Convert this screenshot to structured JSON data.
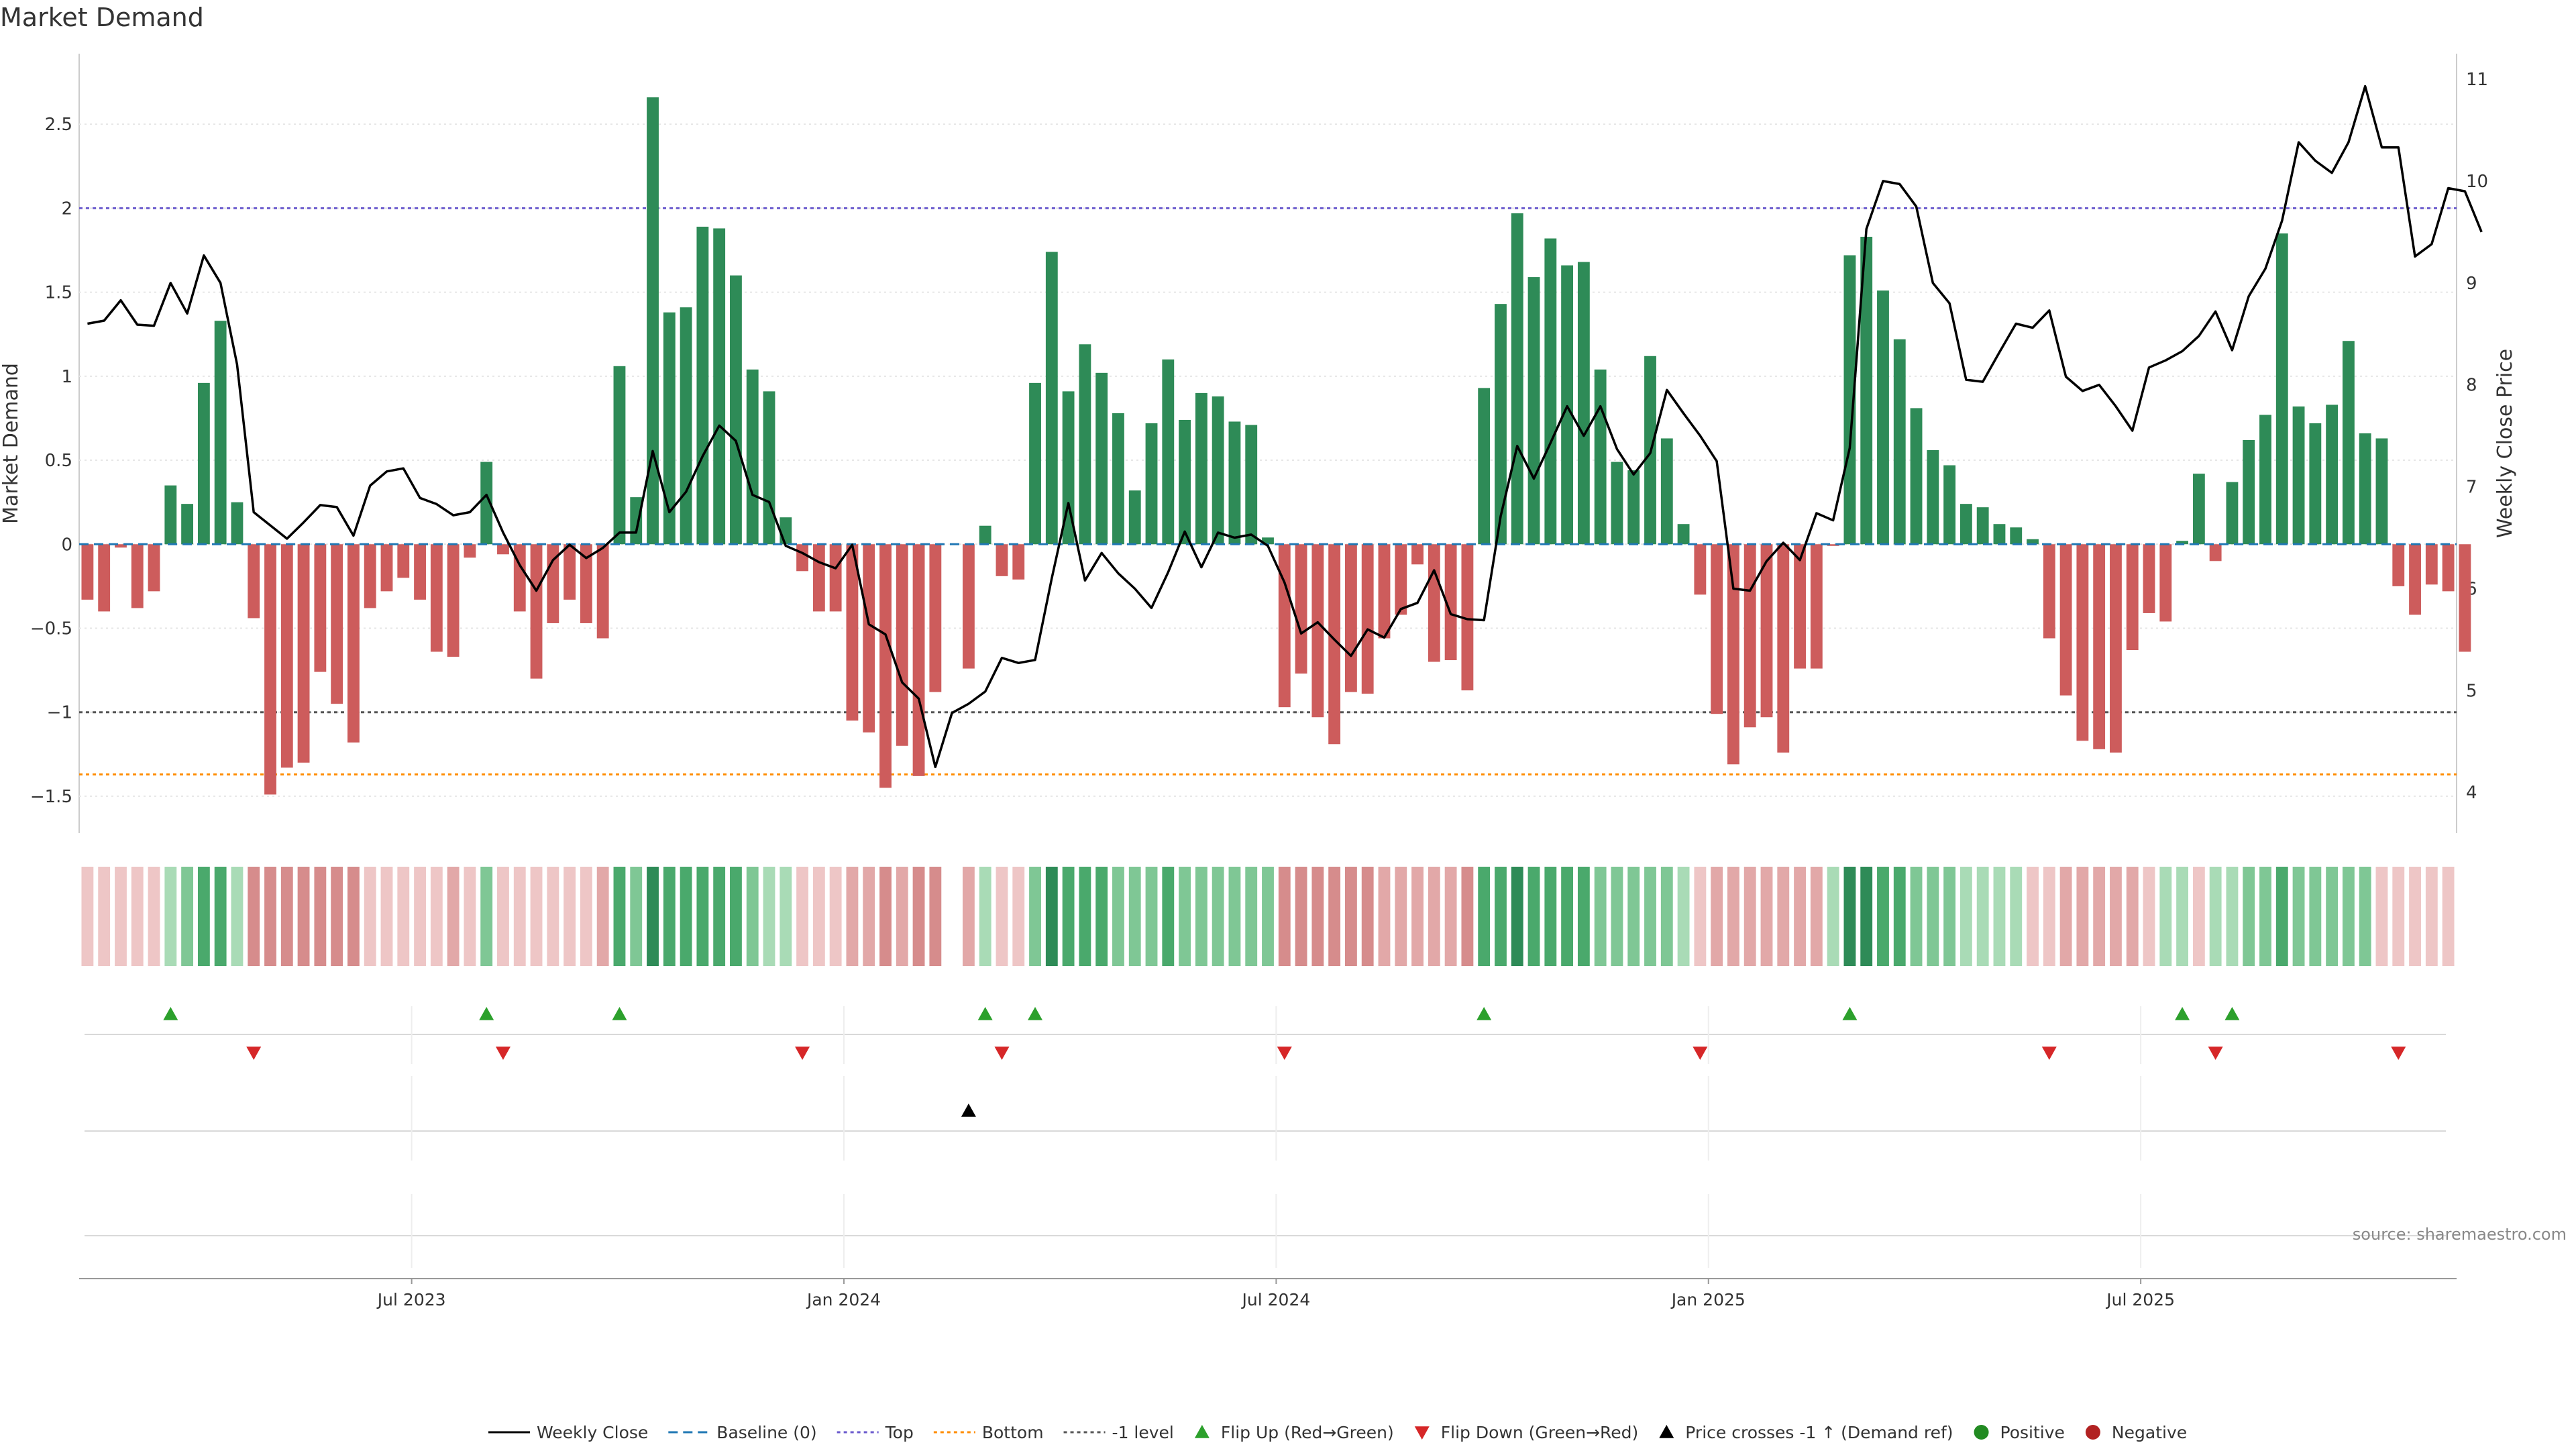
{
  "chart_data": {
    "type": "bar",
    "title": "Market Demand",
    "ylabel": "Market Demand",
    "y2label": "Weekly Close Price",
    "ylim": [
      -1.72,
      2.92
    ],
    "y2lim": [
      3.6,
      11.25
    ],
    "yticks": [
      -1.5,
      -1,
      -0.5,
      0,
      0.5,
      1,
      1.5,
      2,
      2.5
    ],
    "yticklabels": [
      "−1.5",
      "−1",
      "−0.5",
      "0",
      "0.5",
      "1",
      "1.5",
      "2",
      "2.5"
    ],
    "y2ticks": [
      4,
      5,
      6,
      7,
      8,
      9,
      10,
      11
    ],
    "y2ticklabels": [
      "4",
      "5",
      "6",
      "7",
      "8",
      "9",
      "10",
      "11"
    ],
    "xlim": [
      0,
      143
    ],
    "xticks": [
      {
        "label": "Jul 2023",
        "week": 20
      },
      {
        "label": "Jan 2024",
        "week": 46
      },
      {
        "label": "Jul 2024",
        "week": 72
      },
      {
        "label": "Jan 2025",
        "week": 98
      },
      {
        "label": "Jul 2025",
        "week": 124
      }
    ],
    "reference_lines": {
      "baseline": 0,
      "top": 2.0,
      "bottom": -1.37,
      "minus_one": -1.0
    },
    "demand": [
      -0.33,
      -0.4,
      -0.02,
      -0.38,
      -0.28,
      0.35,
      0.24,
      0.96,
      1.33,
      0.25,
      -0.44,
      -1.49,
      -1.33,
      -1.3,
      -0.76,
      -0.95,
      -1.18,
      -0.38,
      -0.28,
      -0.2,
      -0.33,
      -0.64,
      -0.67,
      -0.08,
      0.49,
      -0.06,
      -0.4,
      -0.8,
      -0.47,
      -0.33,
      -0.47,
      -0.56,
      1.06,
      0.28,
      2.66,
      1.38,
      1.41,
      1.89,
      1.88,
      1.6,
      1.04,
      0.91,
      0.16,
      -0.16,
      -0.4,
      -0.4,
      -1.05,
      -1.12,
      -1.45,
      -1.2,
      -1.38,
      -0.88,
      0.0,
      -0.74,
      0.11,
      -0.19,
      -0.21,
      0.96,
      1.74,
      0.91,
      1.19,
      1.02,
      0.78,
      0.32,
      0.72,
      1.1,
      0.74,
      0.9,
      0.88,
      0.73,
      0.71,
      0.04,
      -0.97,
      -0.77,
      -1.03,
      -1.19,
      -0.88,
      -0.89,
      -0.56,
      -0.42,
      -0.12,
      -0.7,
      -0.69,
      -0.87,
      0.93,
      1.43,
      1.97,
      1.59,
      1.82,
      1.66,
      1.68,
      1.04,
      0.49,
      0.44,
      1.12,
      0.63,
      0.12,
      -0.3,
      -1.01,
      -1.31,
      -1.09,
      -1.03,
      -1.24,
      -0.74,
      -0.74,
      -0.01,
      1.72,
      1.83,
      1.51,
      1.22,
      0.81,
      0.56,
      0.47,
      0.24,
      0.22,
      0.12,
      0.1,
      0.03,
      -0.56,
      -0.9,
      -1.17,
      -1.22,
      -1.24,
      -0.63,
      -0.41,
      -0.46,
      0.02,
      0.42,
      -0.1,
      0.37,
      0.62,
      0.77,
      1.85,
      0.82,
      0.72,
      0.83,
      1.21,
      0.66,
      0.63,
      -0.25,
      -0.42,
      -0.24,
      -0.28,
      -0.64
    ],
    "weekly_close": [
      8.6,
      8.63,
      8.83,
      8.59,
      8.58,
      9.0,
      8.7,
      9.27,
      9.0,
      8.2,
      6.75,
      6.62,
      6.49,
      6.65,
      6.82,
      6.8,
      6.52,
      7.01,
      7.15,
      7.18,
      6.89,
      6.83,
      6.72,
      6.75,
      6.92,
      6.55,
      6.23,
      5.98,
      6.28,
      6.43,
      6.3,
      6.4,
      6.55,
      6.55,
      7.35,
      6.75,
      6.95,
      7.3,
      7.6,
      7.45,
      6.92,
      6.85,
      6.42,
      6.35,
      6.26,
      6.2,
      6.43,
      5.65,
      5.55,
      5.08,
      4.92,
      4.25,
      4.78,
      4.87,
      4.99,
      5.32,
      5.27,
      5.3,
      6.1,
      6.84,
      6.08,
      6.35,
      6.15,
      6.0,
      5.81,
      6.16,
      6.56,
      6.21,
      6.55,
      6.5,
      6.53,
      6.42,
      6.06,
      5.56,
      5.67,
      5.5,
      5.34,
      5.6,
      5.52,
      5.8,
      5.86,
      6.18,
      5.75,
      5.7,
      5.69,
      6.71,
      7.4,
      7.08,
      7.43,
      7.79,
      7.5,
      7.79,
      7.37,
      7.12,
      7.33,
      7.95,
      7.72,
      7.5,
      7.25,
      6.0,
      5.98,
      6.27,
      6.45,
      6.28,
      6.74,
      6.67,
      7.38,
      9.53,
      10.0,
      9.97,
      9.75,
      9.0,
      8.8,
      8.05,
      8.03,
      8.32,
      8.6,
      8.56,
      8.73,
      8.08,
      7.94,
      8.0,
      7.79,
      7.55,
      8.17,
      8.24,
      8.33,
      8.48,
      8.72,
      8.34,
      8.87,
      9.14,
      9.61,
      10.38,
      10.2,
      10.08,
      10.38,
      10.93,
      10.33,
      10.33,
      9.26,
      9.38,
      9.93,
      9.9,
      9.5
    ],
    "strip_level": [
      1,
      1,
      1,
      1,
      1,
      1,
      2,
      3,
      3,
      1,
      3,
      3,
      3,
      3,
      3,
      3,
      3,
      1,
      1,
      1,
      1,
      1,
      2,
      1,
      2,
      1,
      1,
      1,
      1,
      1,
      1,
      2,
      3,
      2,
      4,
      3,
      3,
      3,
      3,
      3,
      2,
      1,
      1,
      1,
      1,
      1,
      2,
      2,
      3,
      2,
      3,
      3,
      0,
      2,
      1,
      1,
      1,
      2,
      4,
      3,
      3,
      3,
      2,
      2,
      2,
      3,
      2,
      2,
      2,
      2,
      2,
      2,
      3,
      3,
      3,
      3,
      3,
      3,
      2,
      2,
      2,
      2,
      2,
      3,
      3,
      3,
      4,
      3,
      3,
      3,
      3,
      2,
      2,
      2,
      2,
      2,
      1,
      1,
      2,
      2,
      2,
      2,
      2,
      2,
      2,
      1,
      4,
      4,
      3,
      3,
      2,
      2,
      2,
      1,
      1,
      1,
      1,
      1,
      1,
      2,
      2,
      2,
      2,
      2,
      1,
      1,
      1,
      1,
      1,
      1,
      2,
      2,
      3,
      2,
      2,
      2,
      2,
      2,
      1,
      1,
      1,
      1,
      1,
      1
    ],
    "strip_sign": [
      -1,
      -1,
      -1,
      -1,
      -1,
      1,
      1,
      1,
      1,
      1,
      -1,
      -1,
      -1,
      -1,
      -1,
      -1,
      -1,
      -1,
      -1,
      -1,
      -1,
      -1,
      -1,
      -1,
      1,
      -1,
      -1,
      -1,
      -1,
      -1,
      -1,
      -1,
      1,
      1,
      1,
      1,
      1,
      1,
      1,
      1,
      1,
      1,
      1,
      -1,
      -1,
      -1,
      -1,
      -1,
      -1,
      -1,
      -1,
      -1,
      0,
      -1,
      1,
      -1,
      -1,
      1,
      1,
      1,
      1,
      1,
      1,
      1,
      1,
      1,
      1,
      1,
      1,
      1,
      1,
      1,
      -1,
      -1,
      -1,
      -1,
      -1,
      -1,
      -1,
      -1,
      -1,
      -1,
      -1,
      -1,
      1,
      1,
      1,
      1,
      1,
      1,
      1,
      1,
      1,
      1,
      1,
      1,
      1,
      -1,
      -1,
      -1,
      -1,
      -1,
      -1,
      -1,
      -1,
      1,
      1,
      1,
      1,
      1,
      1,
      1,
      1,
      1,
      1,
      1,
      1,
      -1,
      -1,
      -1,
      -1,
      -1,
      -1,
      -1,
      -1,
      1,
      1,
      -1,
      1,
      1,
      1,
      1,
      1,
      1,
      1,
      1,
      1,
      1,
      -1,
      -1,
      -1,
      -1,
      -1
    ],
    "flip_up_weeks": [
      5,
      24,
      32,
      54,
      57,
      84,
      106,
      126,
      129
    ],
    "flip_down_weeks": [
      10,
      25,
      43,
      55,
      72,
      97,
      118,
      128,
      139
    ],
    "cross_up_weeks": [
      53
    ],
    "colors": {
      "green": "#2e8b57",
      "red": "#cd5c5c",
      "line": "#000000",
      "baseline": "#1f77b4",
      "top": "#6a5acd",
      "bottom": "#ff8c00",
      "minus_one": "#555555",
      "up_marker": "#2ca02c",
      "down_marker": "#d62728",
      "cross_marker": "#000000",
      "strip_pos": [
        "#d5efdc",
        "#a9dbb6",
        "#7fc795",
        "#4aa96c",
        "#2e8b57"
      ],
      "strip_neg": [
        "#f6dcdc",
        "#eec6c6",
        "#e2a8a8",
        "#d68c8c",
        "#c76e6e"
      ]
    },
    "legend": [
      {
        "label": "Weekly Close",
        "kind": "line-solid",
        "color": "#000000"
      },
      {
        "label": "Baseline (0)",
        "kind": "line-dash",
        "color": "#1f77b4"
      },
      {
        "label": "Top",
        "kind": "line-dot",
        "color": "#6a5acd"
      },
      {
        "label": "Bottom",
        "kind": "line-dot",
        "color": "#ff8c00"
      },
      {
        "label": "-1 level",
        "kind": "line-dot",
        "color": "#555555"
      },
      {
        "label": "Flip Up (Red→Green)",
        "kind": "tri-up",
        "color": "#2ca02c"
      },
      {
        "label": "Flip Down (Green→Red)",
        "kind": "tri-down",
        "color": "#d62728"
      },
      {
        "label": "Price crosses -1 ↑ (Demand ref)",
        "kind": "tri-up",
        "color": "#000000"
      },
      {
        "label": "Positive",
        "kind": "dot",
        "color": "#228b22"
      },
      {
        "label": "Negative",
        "kind": "dot",
        "color": "#b22222"
      }
    ],
    "source": "source: sharemaestro.com"
  }
}
